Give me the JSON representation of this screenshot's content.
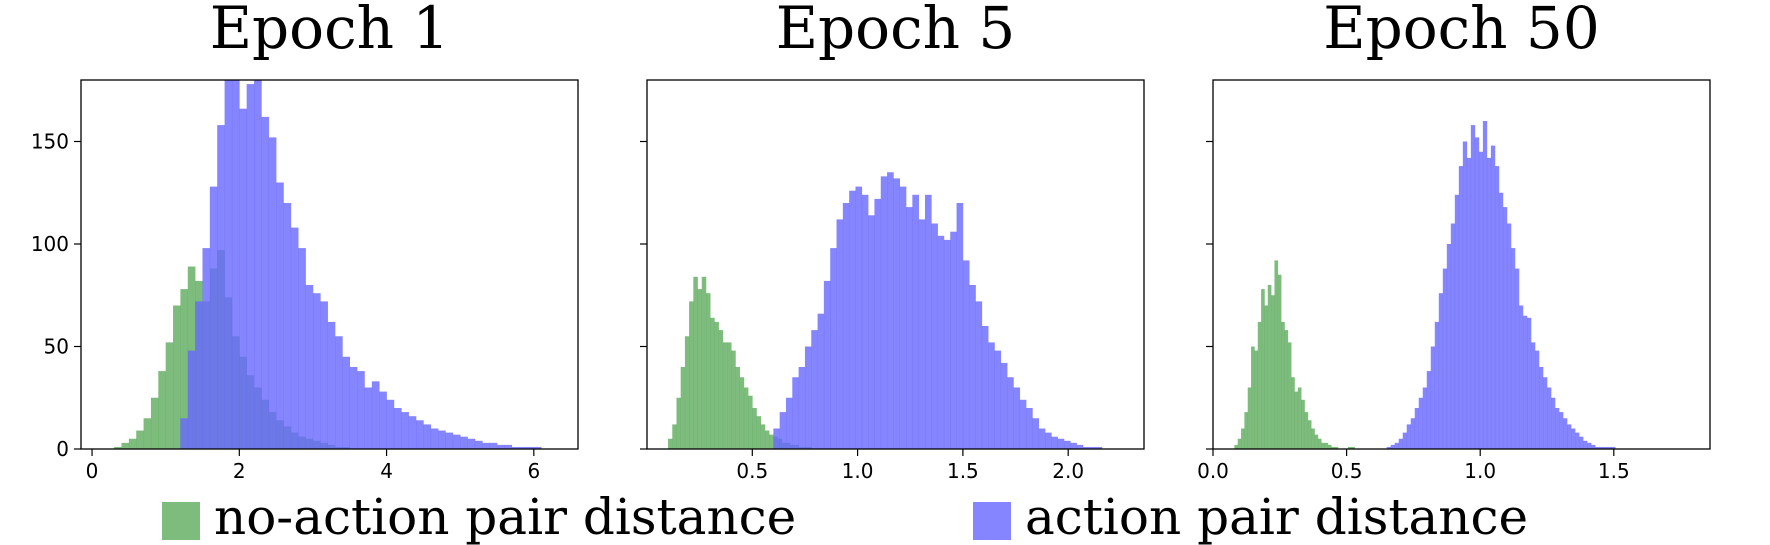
{
  "colors": {
    "no_action": "#5cab5c",
    "action": "#6666ff",
    "overlap": "#2f7a6e"
  },
  "legend": {
    "no_action_label": "no-action pair distance",
    "action_label": "action pair distance"
  },
  "chart_data": [
    {
      "type": "bar",
      "title": "Epoch 1",
      "xlim": [
        -0.15,
        6.6
      ],
      "ylim": [
        0,
        180
      ],
      "xticks": [
        0,
        2,
        4,
        6
      ],
      "xtick_labels": [
        "0",
        "2",
        "4",
        "6"
      ],
      "yticks": [
        0,
        50,
        100,
        150
      ],
      "ytick_labels": [
        "0",
        "50",
        "100",
        "150"
      ],
      "series": [
        {
          "name": "no-action pair distance",
          "x_start": 0.3,
          "bin_width": 0.1,
          "values": [
            1,
            3,
            5,
            9,
            15,
            25,
            38,
            52,
            70,
            78,
            89,
            82,
            72,
            88,
            97,
            74,
            55,
            45,
            36,
            30,
            24,
            18,
            14,
            11,
            8,
            6,
            5,
            4,
            3,
            2,
            1,
            1
          ]
        },
        {
          "name": "action pair distance",
          "x_start": 1.2,
          "bin_width": 0.1,
          "values": [
            15,
            48,
            72,
            98,
            128,
            158,
            185,
            192,
            166,
            178,
            188,
            162,
            152,
            130,
            120,
            108,
            98,
            80,
            76,
            72,
            62,
            55,
            45,
            40,
            38,
            30,
            33,
            28,
            24,
            20,
            18,
            16,
            14,
            12,
            10,
            9,
            8,
            7,
            6,
            5,
            4,
            3,
            3,
            2,
            2,
            1,
            1,
            1,
            1,
            0,
            0,
            0,
            0,
            0,
            0,
            0,
            1,
            2,
            1,
            1,
            1,
            1,
            2,
            1,
            1
          ]
        }
      ]
    },
    {
      "type": "bar",
      "title": "Epoch 5",
      "xlim": [
        0.0,
        2.36
      ],
      "ylim": [
        0,
        180
      ],
      "xticks": [
        0.5,
        1.0,
        1.5,
        2.0
      ],
      "xtick_labels": [
        "0.5",
        "1.0",
        "1.5",
        "2.0"
      ],
      "yticks": [
        0,
        50,
        100,
        150
      ],
      "ytick_labels": [
        "",
        "",
        "",
        ""
      ],
      "series": [
        {
          "name": "no-action pair distance",
          "x_start": 0.1,
          "bin_width": 0.02,
          "values": [
            5,
            12,
            25,
            40,
            55,
            72,
            84,
            78,
            84,
            76,
            64,
            62,
            58,
            52,
            52,
            48,
            40,
            35,
            30,
            26,
            20,
            16,
            12,
            9,
            7,
            6,
            5,
            3,
            3,
            2,
            2,
            1,
            1,
            1
          ]
        },
        {
          "name": "action pair distance",
          "x_start": 0.6,
          "bin_width": 0.03,
          "values": [
            10,
            18,
            25,
            35,
            40,
            50,
            58,
            66,
            82,
            98,
            112,
            120,
            126,
            128,
            124,
            114,
            122,
            133,
            135,
            132,
            128,
            118,
            124,
            112,
            124,
            110,
            104,
            102,
            106,
            120,
            92,
            80,
            72,
            60,
            52,
            48,
            42,
            35,
            30,
            24,
            20,
            15,
            10,
            8,
            6,
            5,
            4,
            3,
            2,
            1,
            1,
            1
          ]
        }
      ]
    },
    {
      "type": "bar",
      "title": "Epoch 50",
      "xlim": [
        0.0,
        1.86
      ],
      "ylim": [
        0,
        180
      ],
      "xticks": [
        0.0,
        0.5,
        1.0,
        1.5
      ],
      "xtick_labels": [
        "0.0",
        "0.5",
        "1.0",
        "1.5"
      ],
      "yticks": [
        0,
        50,
        100,
        150
      ],
      "ytick_labels": [
        "",
        "",
        "",
        ""
      ],
      "series": [
        {
          "name": "no-action pair distance",
          "x_start": 0.08,
          "bin_width": 0.0125,
          "values": [
            2,
            5,
            10,
            18,
            30,
            50,
            48,
            62,
            78,
            70,
            80,
            75,
            92,
            85,
            62,
            58,
            52,
            35,
            28,
            30,
            24,
            18,
            14,
            10,
            7,
            5,
            3,
            3,
            2,
            1,
            1,
            0,
            0,
            0,
            1,
            1
          ]
        },
        {
          "name": "action pair distance",
          "x_start": 0.65,
          "bin_width": 0.015,
          "values": [
            1,
            2,
            3,
            5,
            8,
            12,
            15,
            20,
            25,
            30,
            38,
            50,
            62,
            76,
            88,
            100,
            110,
            124,
            138,
            150,
            142,
            158,
            152,
            145,
            160,
            142,
            148,
            138,
            125,
            118,
            110,
            98,
            88,
            70,
            65,
            64,
            52,
            48,
            40,
            35,
            30,
            25,
            20,
            18,
            15,
            12,
            10,
            8,
            6,
            4,
            3,
            2,
            1,
            1,
            1,
            1,
            1
          ]
        }
      ]
    }
  ]
}
